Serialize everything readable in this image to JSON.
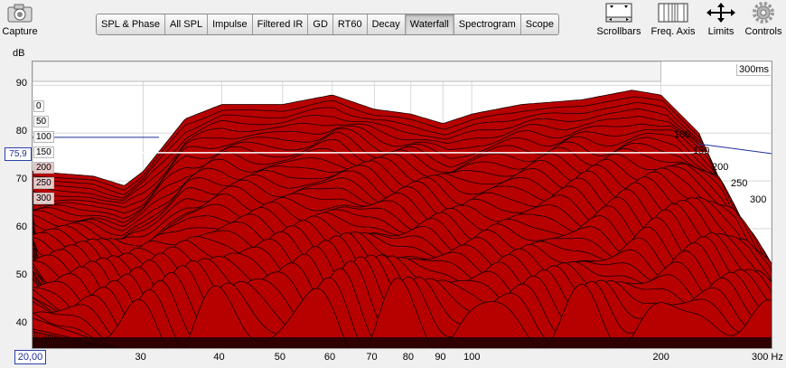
{
  "toolbar": {
    "capture_label": "Capture",
    "tabs": [
      {
        "label": "SPL & Phase"
      },
      {
        "label": "All SPL"
      },
      {
        "label": "Impulse"
      },
      {
        "label": "Filtered IR"
      },
      {
        "label": "GD"
      },
      {
        "label": "RT60"
      },
      {
        "label": "Decay"
      },
      {
        "label": "Waterfall",
        "active": true
      },
      {
        "label": "Spectrogram"
      },
      {
        "label": "Scope"
      }
    ],
    "scrollbars_label": "Scrollbars",
    "freq_axis_label": "Freq. Axis",
    "limits_label": "Limits",
    "controls_label": "Controls"
  },
  "graph": {
    "y_unit": "dB",
    "y_ticks": [
      "90",
      "80",
      "70",
      "60",
      "50",
      "40"
    ],
    "x_ticks": [
      "30",
      "40",
      "50",
      "60",
      "70",
      "80",
      "90",
      "100",
      "200"
    ],
    "x_end_label": "300 Hz",
    "x_start_value": "20,00",
    "cursor_value": "75,9",
    "time_span_label": "300ms",
    "left_time_labels": [
      "0",
      "50",
      "100",
      "150",
      "200",
      "250",
      "300"
    ],
    "right_time_labels": [
      "100",
      "150",
      "200",
      "250",
      "300"
    ],
    "fill_color": "#b70000",
    "line_color": "#1a0000"
  },
  "chart_data": {
    "type": "area",
    "x_scale": "log",
    "xlim": [
      20,
      300
    ],
    "ylim": [
      35,
      95
    ],
    "xlabel": "Hz",
    "ylabel": "dB",
    "time_slices_ms": [
      0,
      50,
      100,
      150,
      200,
      250,
      300
    ],
    "x": [
      20,
      25,
      28,
      30,
      35,
      40,
      50,
      60,
      70,
      80,
      90,
      100,
      120,
      150,
      180,
      200,
      230,
      260,
      300
    ],
    "series": [
      {
        "name": "0",
        "values": [
          72,
          71,
          69,
          72,
          83,
          86,
          86,
          88,
          85,
          84,
          82,
          84,
          86,
          87,
          89,
          88,
          80,
          63,
          43
        ]
      },
      {
        "name": "300",
        "values": [
          40,
          40,
          40,
          41,
          42,
          43,
          42,
          41,
          41,
          40,
          40,
          40,
          40,
          40,
          40,
          40,
          40,
          40,
          40
        ]
      }
    ]
  }
}
